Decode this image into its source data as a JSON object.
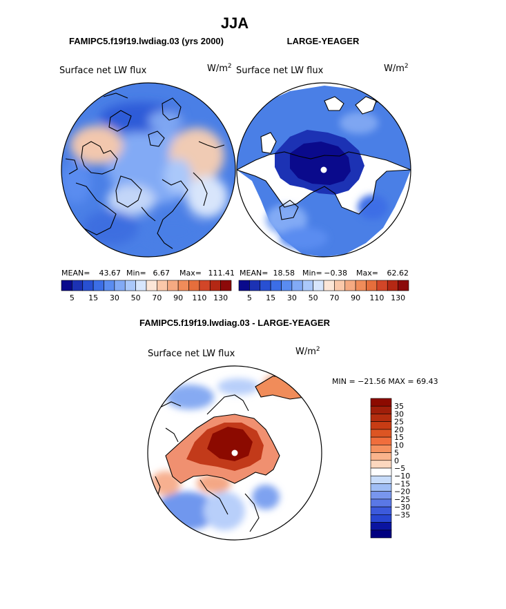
{
  "season": "JJA",
  "panels": [
    {
      "case_title": "FAMIPC5.f19f19.lwdiag.03 (yrs 2000)",
      "variable": "Surface net LW flux",
      "units_base": "W/m",
      "units_exp": "2",
      "stats": {
        "mean_label": "MEAN=",
        "mean": "43.67",
        "min_label": "Min=",
        "min": "6.67",
        "max_label": "Max=",
        "max": "111.41"
      }
    },
    {
      "case_title": "LARGE-YEAGER",
      "variable": "Surface net LW flux",
      "units_base": "W/m",
      "units_exp": "2",
      "stats": {
        "mean_label": "MEAN=",
        "mean": "18.58",
        "min_label": "Min=",
        "min": "−0.38",
        "max_label": "Max=",
        "max": "62.62"
      }
    }
  ],
  "diff_panel": {
    "title": "FAMIPC5.f19f19.lwdiag.03 - LARGE-YEAGER",
    "variable": "Surface net LW flux",
    "units_base": "W/m",
    "units_exp": "2",
    "minmax_text": "MIN = −21.56 MAX =  69.43"
  },
  "chart_data": [
    {
      "type": "heatmap",
      "projection": "polar-stereographic (north pole)",
      "title": "FAMIPC5.f19f19.lwdiag.03 (yrs 2000)",
      "field": "Surface net LW flux",
      "units": "W/m2",
      "mean": 43.67,
      "min": 6.67,
      "max": 111.41,
      "colorbar": {
        "tick_labels": [
          "5",
          "15",
          "30",
          "50",
          "70",
          "90",
          "110",
          "130"
        ],
        "colors": [
          "#0a0a8c",
          "#1c32b4",
          "#2850d2",
          "#3c6ee6",
          "#5a8cf0",
          "#82aaf5",
          "#aac8fa",
          "#d7e6fc",
          "#fce6d7",
          "#fac8aa",
          "#f5aa82",
          "#f08c5a",
          "#e66e3c",
          "#d24628",
          "#b42814",
          "#8c0a0a"
        ]
      }
    },
    {
      "type": "heatmap",
      "projection": "polar-stereographic (north pole)",
      "title": "LARGE-YEAGER",
      "field": "Surface net LW flux",
      "units": "W/m2",
      "mean": 18.58,
      "min": -0.38,
      "max": 62.62,
      "colorbar": {
        "tick_labels": [
          "5",
          "15",
          "30",
          "50",
          "70",
          "90",
          "110",
          "130"
        ],
        "colors": [
          "#0a0a8c",
          "#1c32b4",
          "#2850d2",
          "#3c6ee6",
          "#5a8cf0",
          "#82aaf5",
          "#aac8fa",
          "#d7e6fc",
          "#fce6d7",
          "#fac8aa",
          "#f5aa82",
          "#f08c5a",
          "#e66e3c",
          "#d24628",
          "#b42814",
          "#8c0a0a"
        ]
      }
    },
    {
      "type": "heatmap",
      "projection": "polar-stereographic (north pole)",
      "title": "FAMIPC5.f19f19.lwdiag.03 - LARGE-YEAGER",
      "field": "Surface net LW flux",
      "units": "W/m2",
      "min": -21.56,
      "max": 69.43,
      "colorbar": {
        "orientation": "vertical",
        "tick_labels": [
          "35",
          "30",
          "25",
          "20",
          "15",
          "10",
          "5",
          "0",
          "−5",
          "−10",
          "−15",
          "−20",
          "−25",
          "−30",
          "−35"
        ],
        "colors": [
          "#8c0a00",
          "#a01e0a",
          "#b42d0f",
          "#c83c14",
          "#dc5523",
          "#f06e3c",
          "#f5915f",
          "#fab48c",
          "#fcd7be",
          "#ffffff",
          "#c8dcfa",
          "#a0bef5",
          "#7896ee",
          "#5a78e6",
          "#3c5adc",
          "#2846d2",
          "#0a14a0",
          "#000080"
        ]
      }
    }
  ]
}
